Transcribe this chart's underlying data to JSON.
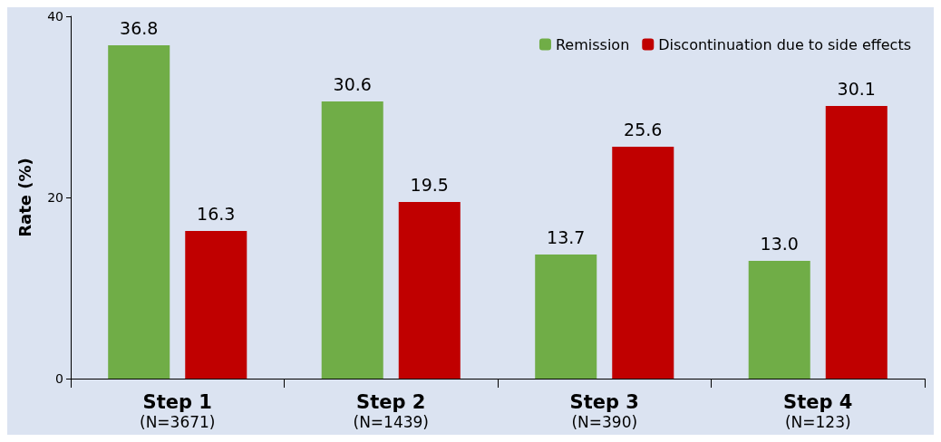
{
  "chart_data": {
    "type": "bar",
    "ylabel": "Rate (%)",
    "categories": [
      "Step 1\n(N=3671)",
      "Step 2\n(N=1439)",
      "Step 3\n(N=390)",
      "Step 4\n(N=123)"
    ],
    "series": [
      {
        "name": "Remission",
        "color": "#70ad47",
        "values": [
          36.8,
          30.6,
          13.7,
          13.0
        ]
      },
      {
        "name": "Discontinuation due to side effects",
        "color": "#c00000",
        "values": [
          16.3,
          19.5,
          25.6,
          30.1
        ]
      }
    ],
    "value_labels": [
      [
        "36.8",
        "30.6",
        "13.7",
        "13.0"
      ],
      [
        "16.3",
        "19.5",
        "25.6",
        "30.1"
      ]
    ],
    "ylim": [
      0,
      40
    ],
    "yticks": [
      0,
      20,
      40
    ],
    "grid": false,
    "legend": "top right"
  }
}
